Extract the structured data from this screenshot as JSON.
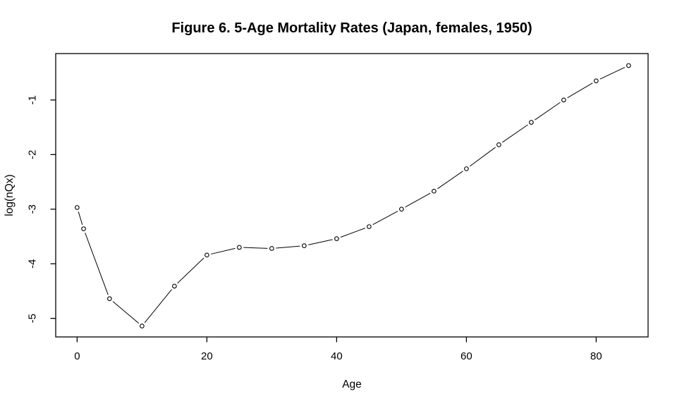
{
  "chart_data": {
    "type": "line",
    "subtype": "points-and-lines",
    "title": "Figure 6. 5-Age Mortality Rates (Japan, females, 1950)",
    "xlabel": "Age",
    "ylabel": "log(nQx)",
    "x": [
      0,
      1,
      5,
      10,
      15,
      20,
      25,
      30,
      35,
      40,
      45,
      50,
      55,
      60,
      65,
      70,
      75,
      80,
      85
    ],
    "y": [
      -2.97,
      -3.36,
      -4.64,
      -5.14,
      -4.41,
      -3.84,
      -3.7,
      -3.72,
      -3.67,
      -3.54,
      -3.32,
      -3.0,
      -2.67,
      -2.26,
      -1.82,
      -1.41,
      -1.0,
      -0.65,
      -0.37
    ],
    "x_ticks": [
      0,
      20,
      40,
      60,
      80
    ],
    "y_ticks": [
      -1,
      -2,
      -3,
      -4,
      -5
    ],
    "xlim": [
      -3.3,
      88.0
    ],
    "ylim": [
      -5.34,
      -0.15
    ],
    "grid": false,
    "legend": null,
    "marker": "open-circle",
    "colors": {
      "background": "#ffffff",
      "line": "#000000",
      "marker": "#000000",
      "axis": "#000000",
      "text": "#000000"
    }
  }
}
